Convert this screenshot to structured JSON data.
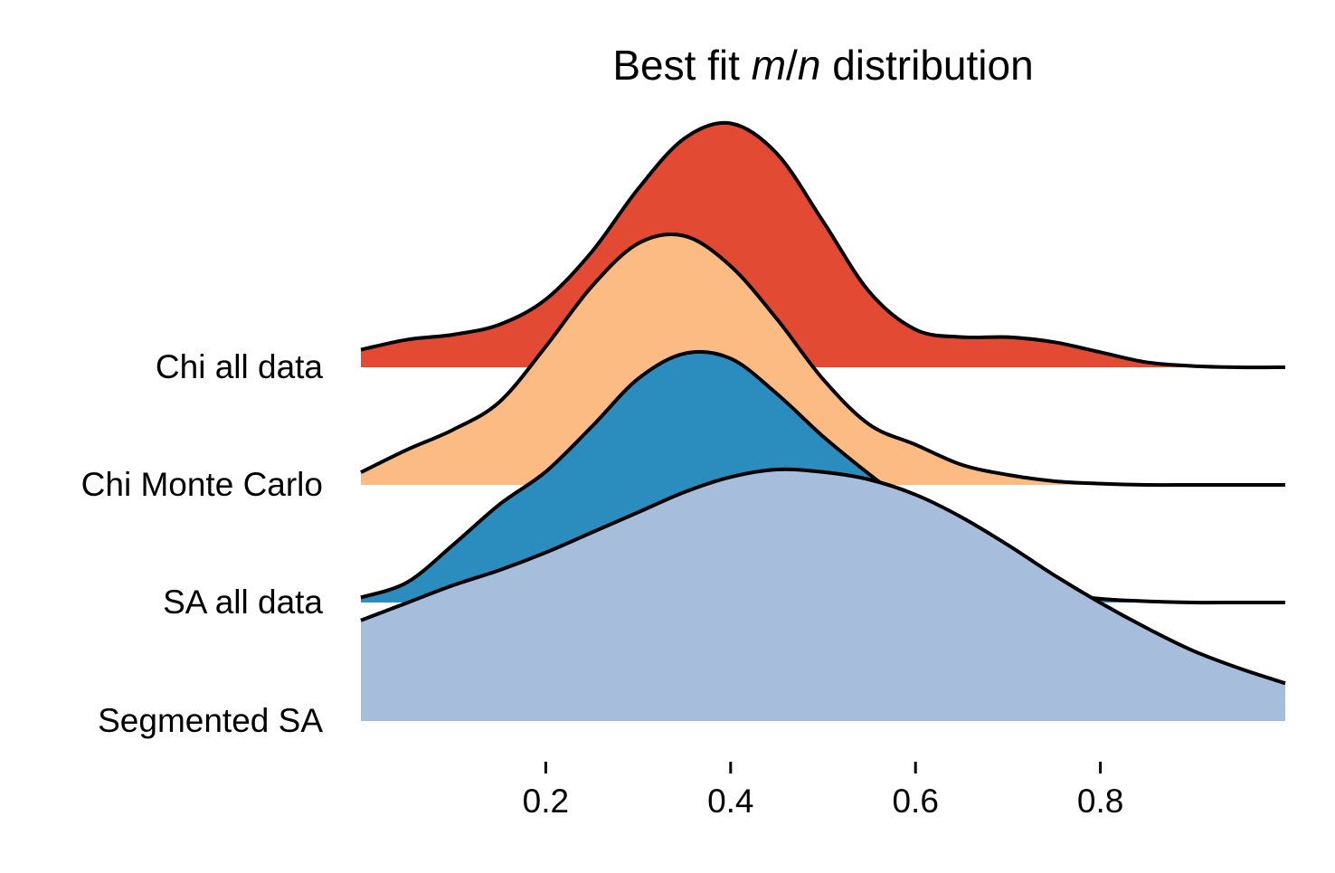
{
  "chart_data": {
    "type": "area",
    "subtype": "ridgeline",
    "title": {
      "before": "Best fit ",
      "italic_1": "m",
      "slash": "/",
      "italic_2": "n",
      "after": " distribution"
    },
    "xlabel": "",
    "ylabel": "",
    "xlim": [
      0.0,
      1.0
    ],
    "xticks": [
      0.2,
      0.4,
      0.6,
      0.8
    ],
    "xtick_labels": [
      "0.2",
      "0.4",
      "0.6",
      "0.8"
    ],
    "grid": false,
    "legend": "none",
    "x": [
      0.0,
      0.05,
      0.1,
      0.15,
      0.2,
      0.25,
      0.3,
      0.35,
      0.4,
      0.45,
      0.5,
      0.55,
      0.6,
      0.65,
      0.7,
      0.75,
      0.8,
      0.85,
      0.9,
      0.95,
      1.0
    ],
    "series": [
      {
        "name": "Chi all data",
        "color": "#e34a33",
        "values": [
          0.07,
          0.11,
          0.13,
          0.17,
          0.27,
          0.46,
          0.71,
          0.91,
          0.97,
          0.85,
          0.58,
          0.3,
          0.15,
          0.12,
          0.12,
          0.1,
          0.06,
          0.02,
          0.005,
          0.0,
          0.0
        ]
      },
      {
        "name": "Chi Monte Carlo",
        "color": "#fdbb84",
        "values": [
          0.05,
          0.14,
          0.22,
          0.33,
          0.55,
          0.79,
          0.96,
          0.99,
          0.87,
          0.66,
          0.42,
          0.24,
          0.16,
          0.08,
          0.04,
          0.015,
          0.005,
          0.0,
          0.0,
          0.0,
          0.0
        ]
      },
      {
        "name": "SA all data",
        "color": "#2b8cbe",
        "values": [
          0.02,
          0.08,
          0.23,
          0.39,
          0.52,
          0.7,
          0.89,
          0.99,
          0.97,
          0.83,
          0.66,
          0.51,
          0.37,
          0.22,
          0.1,
          0.04,
          0.015,
          0.005,
          0.0,
          0.0,
          0.0
        ]
      },
      {
        "name": "Segmented SA",
        "color": "#a6bddb",
        "values": [
          0.4,
          0.47,
          0.54,
          0.6,
          0.67,
          0.75,
          0.83,
          0.91,
          0.97,
          1.0,
          0.99,
          0.96,
          0.9,
          0.81,
          0.7,
          0.58,
          0.47,
          0.37,
          0.28,
          0.21,
          0.15
        ]
      }
    ]
  }
}
